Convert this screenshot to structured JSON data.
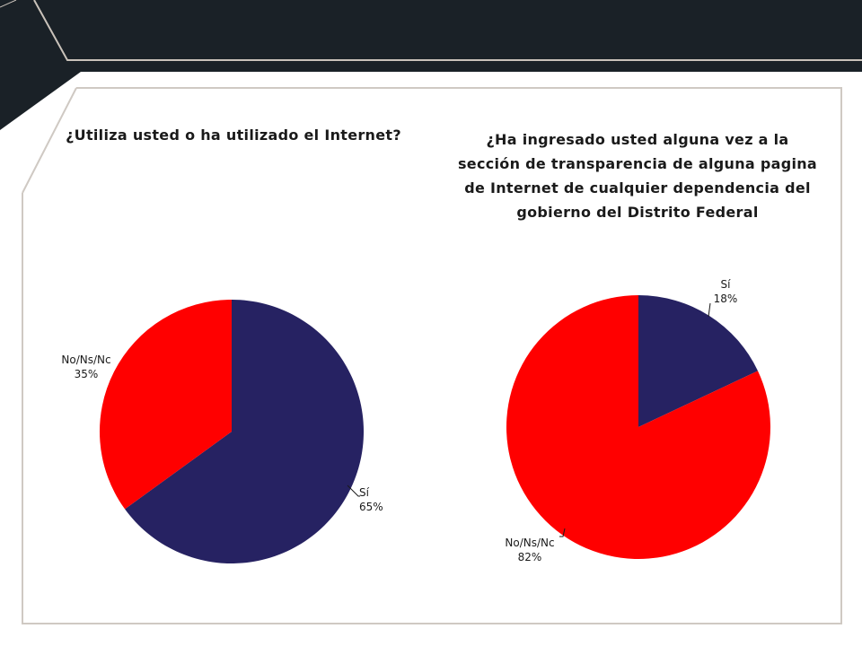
{
  "colors": {
    "header_bg": "#1a2127",
    "accent_line": "#c9c2ba",
    "frame": "#cfc9c3",
    "series_si": "#262262",
    "series_no": "#ff0000",
    "text": "#1a1a1a"
  },
  "chart_data": [
    {
      "type": "pie",
      "title": "¿Utiliza usted o ha utilizado el Internet?",
      "categories": [
        "Sí",
        "No/Ns/Nc"
      ],
      "values": [
        65,
        35
      ],
      "labels": [
        {
          "name": "Sí",
          "value": "65%"
        },
        {
          "name": "No/Ns/Nc",
          "value": "35%"
        }
      ]
    },
    {
      "type": "pie",
      "title": "¿Ha ingresado usted alguna vez a la sección de transparencia de alguna pagina de Internet de cualquier dependencia del gobierno del Distrito Federal",
      "categories": [
        "Sí",
        "No/Ns/Nc"
      ],
      "values": [
        18,
        82
      ],
      "labels": [
        {
          "name": "Sí",
          "value": "18%"
        },
        {
          "name": "No/Ns/Nc",
          "value": "82%"
        }
      ]
    }
  ]
}
